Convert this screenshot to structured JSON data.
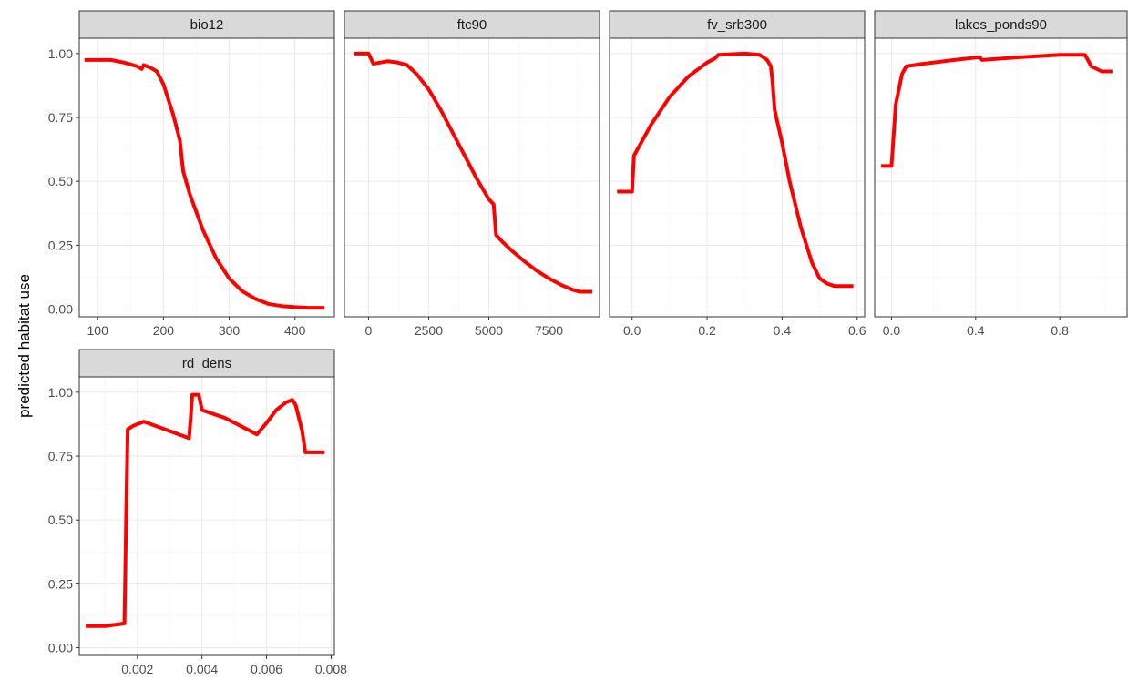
{
  "chart_data": {
    "type": "line",
    "ylabel": "predicted habitat use",
    "ylim": [
      -0.03,
      1.06
    ],
    "y_ticks": [
      0.0,
      0.25,
      0.5,
      0.75,
      1.0
    ],
    "y_tick_labels": [
      "0.00",
      "0.25",
      "0.50",
      "0.75",
      "1.00"
    ],
    "line_color": "#ff0000",
    "grid": true,
    "panels": [
      {
        "title": "bio12",
        "xlim": [
          72,
          460
        ],
        "x_ticks": [
          100,
          200,
          300,
          400
        ],
        "x_tick_labels": [
          "100",
          "200",
          "300",
          "400"
        ],
        "x": [
          80,
          120,
          140,
          160,
          167,
          170,
          180,
          190,
          200,
          215,
          225,
          230,
          240,
          260,
          280,
          300,
          320,
          340,
          360,
          380,
          400,
          420,
          445
        ],
        "y": [
          0.975,
          0.975,
          0.965,
          0.95,
          0.94,
          0.955,
          0.945,
          0.93,
          0.88,
          0.76,
          0.66,
          0.54,
          0.45,
          0.31,
          0.2,
          0.12,
          0.07,
          0.04,
          0.02,
          0.012,
          0.008,
          0.005,
          0.005
        ]
      },
      {
        "title": "ftc90",
        "xlim": [
          -1000,
          9600
        ],
        "x_ticks": [
          0,
          2500,
          5000,
          7500
        ],
        "x_tick_labels": [
          "0",
          "2500",
          "5000",
          "7500"
        ],
        "x": [
          -600,
          0,
          200,
          500,
          800,
          1200,
          1600,
          2000,
          2500,
          3000,
          3500,
          4000,
          4500,
          5000,
          5200,
          5300,
          5600,
          6000,
          6500,
          7000,
          7500,
          8000,
          8500,
          8800,
          9300
        ],
        "y": [
          1.0,
          1.0,
          0.96,
          0.965,
          0.97,
          0.965,
          0.955,
          0.92,
          0.86,
          0.78,
          0.69,
          0.6,
          0.51,
          0.43,
          0.41,
          0.29,
          0.26,
          0.225,
          0.185,
          0.15,
          0.12,
          0.095,
          0.075,
          0.068,
          0.068
        ]
      },
      {
        "title": "fv_srb300",
        "xlim": [
          -0.06,
          0.62
        ],
        "x_ticks": [
          0.0,
          0.2,
          0.4,
          0.6
        ],
        "x_tick_labels": [
          "0.0",
          "0.2",
          "0.4",
          "0.6"
        ],
        "x": [
          -0.04,
          0.0,
          0.005,
          0.05,
          0.1,
          0.15,
          0.2,
          0.22,
          0.23,
          0.3,
          0.34,
          0.36,
          0.37,
          0.375,
          0.38,
          0.4,
          0.42,
          0.45,
          0.48,
          0.5,
          0.52,
          0.54,
          0.59
        ],
        "y": [
          0.46,
          0.46,
          0.6,
          0.72,
          0.83,
          0.91,
          0.965,
          0.98,
          0.995,
          1.0,
          0.995,
          0.975,
          0.95,
          0.88,
          0.78,
          0.65,
          0.5,
          0.32,
          0.18,
          0.12,
          0.1,
          0.09,
          0.09
        ]
      },
      {
        "title": "lakes_ponds90",
        "xlim": [
          -0.08,
          1.12
        ],
        "x_ticks": [
          0.0,
          0.4,
          0.8
        ],
        "x_tick_labels": [
          "0.0",
          "0.4",
          "0.8"
        ],
        "x": [
          -0.05,
          0.0,
          0.02,
          0.05,
          0.07,
          0.15,
          0.3,
          0.41,
          0.42,
          0.43,
          0.6,
          0.8,
          0.92,
          0.93,
          0.95,
          1.0,
          1.05
        ],
        "y": [
          0.56,
          0.56,
          0.8,
          0.92,
          0.95,
          0.96,
          0.975,
          0.985,
          0.985,
          0.975,
          0.985,
          0.995,
          0.995,
          0.98,
          0.95,
          0.93,
          0.93
        ]
      },
      {
        "title": "rd_dens",
        "xlim": [
          0.0002,
          0.0081
        ],
        "x_ticks": [
          0.002,
          0.004,
          0.006,
          0.008
        ],
        "x_tick_labels": [
          "0.002",
          "0.004",
          "0.006",
          "0.008"
        ],
        "x": [
          0.0004,
          0.001,
          0.0016,
          0.00165,
          0.0017,
          0.0019,
          0.0022,
          0.0036,
          0.00365,
          0.0037,
          0.0039,
          0.004,
          0.0047,
          0.0057,
          0.006,
          0.0063,
          0.0066,
          0.0068,
          0.0069,
          0.0071,
          0.0072,
          0.0078
        ],
        "y": [
          0.085,
          0.085,
          0.095,
          0.5,
          0.855,
          0.87,
          0.885,
          0.82,
          0.9,
          0.99,
          0.99,
          0.93,
          0.9,
          0.835,
          0.88,
          0.93,
          0.96,
          0.97,
          0.95,
          0.85,
          0.765,
          0.765
        ]
      }
    ]
  }
}
